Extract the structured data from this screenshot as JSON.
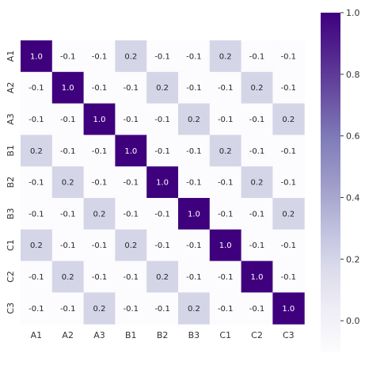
{
  "chart_data": {
    "type": "heatmap",
    "title": "",
    "xlabel": "",
    "ylabel": "",
    "x_labels": [
      "A1",
      "A2",
      "A3",
      "B1",
      "B2",
      "B3",
      "C1",
      "C2",
      "C3"
    ],
    "y_labels": [
      "A1",
      "A2",
      "A3",
      "B1",
      "B2",
      "B3",
      "C1",
      "C2",
      "C3"
    ],
    "values": [
      [
        1.0,
        -0.1,
        -0.1,
        0.2,
        -0.1,
        -0.1,
        0.2,
        -0.1,
        -0.1
      ],
      [
        -0.1,
        1.0,
        -0.1,
        -0.1,
        0.2,
        -0.1,
        -0.1,
        0.2,
        -0.1
      ],
      [
        -0.1,
        -0.1,
        1.0,
        -0.1,
        -0.1,
        0.2,
        -0.1,
        -0.1,
        0.2
      ],
      [
        0.2,
        -0.1,
        -0.1,
        1.0,
        -0.1,
        -0.1,
        0.2,
        -0.1,
        -0.1
      ],
      [
        -0.1,
        0.2,
        -0.1,
        -0.1,
        1.0,
        -0.1,
        -0.1,
        0.2,
        -0.1
      ],
      [
        -0.1,
        -0.1,
        0.2,
        -0.1,
        -0.1,
        1.0,
        -0.1,
        -0.1,
        0.2
      ],
      [
        0.2,
        -0.1,
        -0.1,
        0.2,
        -0.1,
        -0.1,
        1.0,
        -0.1,
        -0.1
      ],
      [
        -0.1,
        0.2,
        -0.1,
        -0.1,
        0.2,
        -0.1,
        -0.1,
        1.0,
        -0.1
      ],
      [
        -0.1,
        -0.1,
        0.2,
        -0.1,
        -0.1,
        0.2,
        -0.1,
        -0.1,
        1.0
      ]
    ],
    "annotations": true,
    "value_format": "one decimal",
    "colormap": "Purples",
    "colorbar": {
      "range": [
        -0.1,
        1.0
      ],
      "ticks": [
        "0.0",
        "0.2",
        "0.4",
        "0.6",
        "0.8",
        "1.0"
      ],
      "placement": "right"
    },
    "grid": false
  },
  "colors": {
    "low": "#fcfbfd",
    "mid1": "#dadaeb",
    "mid2": "#9e9ac8",
    "mid3": "#6a51a3",
    "high": "#3f007d",
    "text_dark": "#262626",
    "text_light": "#ffffff"
  }
}
